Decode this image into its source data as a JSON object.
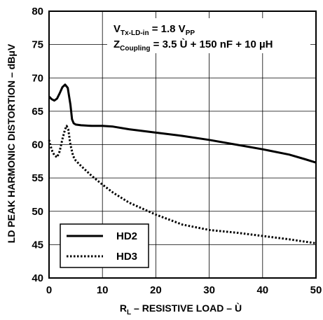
{
  "chart_data": {
    "type": "line",
    "title": "",
    "xlabel": {
      "main": "R",
      "sub": "L",
      "rest": " – RESISTIVE LOAD – Ù"
    },
    "ylabel": "LD PEAK HARMONIC DISTORTION – dBμV",
    "xlim": [
      0,
      50
    ],
    "ylim": [
      40,
      80
    ],
    "x_ticks": [
      "0",
      "10",
      "20",
      "30",
      "40",
      "50"
    ],
    "y_ticks": [
      "40",
      "45",
      "50",
      "55",
      "60",
      "65",
      "70",
      "75",
      "80"
    ],
    "grid": true,
    "legend_position": "bottom-left",
    "annotation": {
      "line1": {
        "main": "V",
        "sub": "Tx-LD-in",
        "mid": " = 1.8 V",
        "sub2": "PP"
      },
      "line2": {
        "main": "Z",
        "sub": "Coupling",
        "rest": " = 3.5 Ù + 150 nF + 10 µH"
      }
    },
    "series": [
      {
        "name": "HD2",
        "style": "solid",
        "x": [
          0,
          0.5,
          1,
          1.5,
          2,
          2.5,
          3,
          3.5,
          4,
          4.3,
          4.6,
          5,
          6,
          8,
          10,
          12,
          15,
          20,
          25,
          30,
          35,
          40,
          45,
          48,
          50
        ],
        "y": [
          67.2,
          66.8,
          66.6,
          66.9,
          67.7,
          68.6,
          69.0,
          68.5,
          66.0,
          63.8,
          63.2,
          63.0,
          62.9,
          62.8,
          62.8,
          62.7,
          62.3,
          61.8,
          61.3,
          60.7,
          60.0,
          59.3,
          58.5,
          57.8,
          57.3
        ]
      },
      {
        "name": "HD3",
        "style": "dotted",
        "x": [
          0,
          0.5,
          1,
          1.5,
          2,
          2.5,
          3,
          3.3,
          3.6,
          4,
          4.5,
          5,
          6,
          8,
          10,
          12,
          15,
          20,
          25,
          30,
          35,
          40,
          45,
          50
        ],
        "y": [
          60.7,
          59.2,
          58.4,
          58.1,
          59.0,
          60.8,
          62.3,
          62.8,
          62.3,
          60.0,
          58.3,
          57.6,
          56.8,
          55.3,
          54.0,
          52.8,
          51.3,
          49.5,
          48.0,
          47.2,
          46.8,
          46.3,
          45.8,
          45.2
        ]
      }
    ],
    "colors": {
      "line": "#000000",
      "grid": "#000000",
      "background": "#ffffff"
    }
  }
}
